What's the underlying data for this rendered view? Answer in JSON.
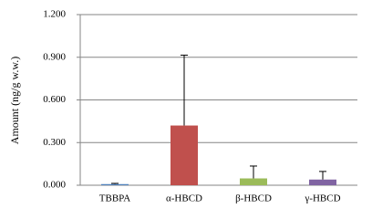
{
  "chart_data": {
    "type": "bar",
    "y_label": "Amount (ng/g w.w.)",
    "categories": [
      "TBBPA",
      "α-HBCD",
      "β-HBCD",
      "γ-HBCD"
    ],
    "values": [
      0.008,
      0.42,
      0.048,
      0.04
    ],
    "errors": [
      0.005,
      0.495,
      0.087,
      0.057
    ],
    "colors": [
      "#4f81bd",
      "#c0504d",
      "#9bbb59",
      "#8064a2"
    ],
    "ylim": [
      0,
      1.2
    ],
    "yticks": [
      {
        "value": 0,
        "label": "0.000"
      },
      {
        "value": 0.3,
        "label": "0.300"
      },
      {
        "value": 0.6,
        "label": "0.600"
      },
      {
        "value": 0.9,
        "label": "0.900"
      },
      {
        "value": 1.2,
        "label": "1.200"
      }
    ],
    "grid": true
  }
}
